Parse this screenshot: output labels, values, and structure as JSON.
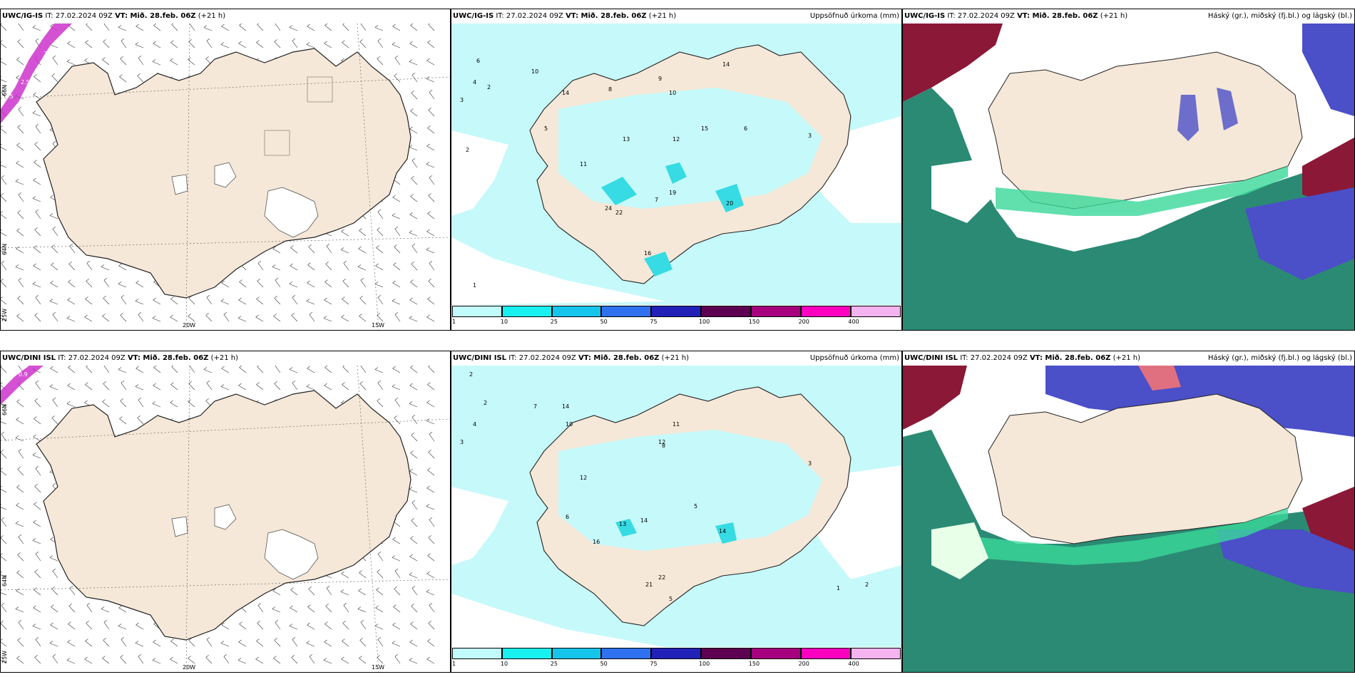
{
  "panels": {
    "igis_wind": {
      "model": "UWC/IG-IS",
      "run": "IT: 27.02.2024 09Z",
      "valid": "VT: Mið. 28.feb. 06Z",
      "lead": "(+21 h)",
      "product": ""
    },
    "igis_precip": {
      "model": "UWC/IG-IS",
      "run": "IT: 27.02.2024 09Z",
      "valid": "VT: Mið. 28.feb. 06Z",
      "lead": "(+21 h)",
      "product": "Uppsöfnuð úrkoma (mm)"
    },
    "igis_cloud": {
      "model": "UWC/IG-IS",
      "run": "IT: 27.02.2024 09Z",
      "valid": "VT: Mið. 28.feb. 06Z",
      "lead": "(+21 h)",
      "product": "Háský (gr.), miðský (fj.bl.) og lágský (bl.)"
    },
    "dini_wind": {
      "model": "UWC/DINI ISL",
      "run": "IT: 27.02.2024 09Z",
      "valid": "VT: Mið. 28.feb. 06Z",
      "lead": "(+21 h)",
      "product": ""
    },
    "dini_precip": {
      "model": "UWC/DINI ISL",
      "run": "IT: 27.02.2024 09Z",
      "valid": "VT: Mið. 28.feb. 06Z",
      "lead": "(+21 h)",
      "product": "Uppsöfnuð úrkoma (mm)"
    },
    "dini_cloud": {
      "model": "UWC/DINI ISL",
      "run": "IT: 27.02.2024 09Z",
      "valid": "VT: Mið. 28.feb. 06Z",
      "lead": "(+21 h)",
      "product": "Háský (gr.), miðský (fj.bl.) og lágský (bl.)"
    }
  },
  "grid_labels": {
    "lon_20w": "20W",
    "lon_15w": "15W",
    "lat_66n": "66N",
    "lat_64n": "64N",
    "lat_65w": "25W"
  },
  "precip_legend": {
    "ticks": [
      "1",
      "10",
      "25",
      "50",
      "75",
      "100",
      "150",
      "200",
      "400"
    ],
    "colors": [
      "#c2fbfb",
      "#19f0f0",
      "#16c5ec",
      "#2f71ee",
      "#2121b7",
      "#5e0052",
      "#a6007f",
      "#ff00c0",
      "#f5b3f0"
    ]
  },
  "colors": {
    "land": "#f5e8d8",
    "precip_light": "#c6f9fa",
    "precip_mid": "#37dbe3",
    "cloud_high_red": "#8b1837",
    "cloud_mid_blue": "#4b4fc8",
    "cloud_low_green": "#2b8a74"
  },
  "precip_values_top": [
    "6",
    "4",
    "2",
    "3",
    "10",
    "14",
    "5",
    "9",
    "8",
    "10",
    "14",
    "13",
    "12",
    "15",
    "6",
    "24",
    "22",
    "19",
    "20",
    "11",
    "7",
    "3",
    "2",
    "1",
    "16"
  ],
  "precip_values_bottom": [
    "2",
    "2",
    "4",
    "3",
    "7",
    "14",
    "10",
    "11",
    "12",
    "13",
    "8",
    "14",
    "16",
    "5",
    "21",
    "14",
    "12",
    "3",
    "2",
    "1",
    "5",
    "22",
    "6"
  ],
  "wind_isotach_top": [
    "2.5",
    "2.5",
    "2.5"
  ],
  "wind_isotach_bottom": [
    "0.9"
  ]
}
